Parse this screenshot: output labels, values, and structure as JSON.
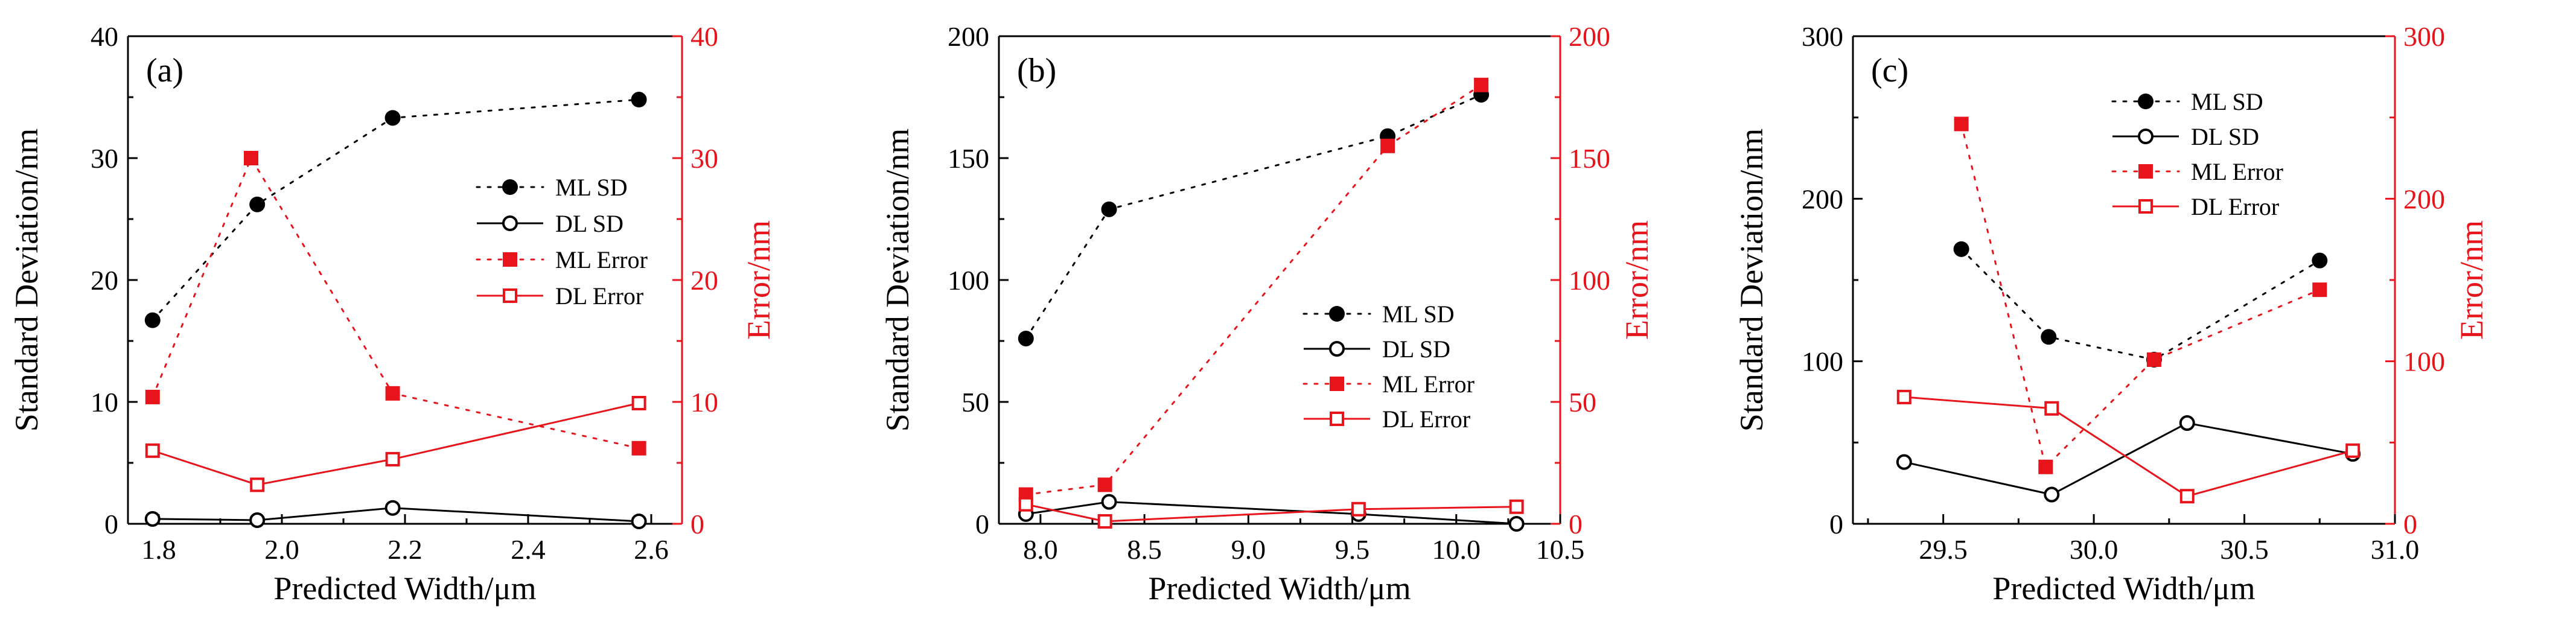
{
  "chart_data": [
    {
      "type": "line",
      "panel_label": "(a)",
      "xlabel": "Predicted Width/μm",
      "ylabel_left": "Standard Deviation/nm",
      "ylabel_right": "Error/nm",
      "xlim": [
        1.75,
        2.65
      ],
      "ylim_left": [
        0,
        40
      ],
      "ylim_right": [
        0,
        40
      ],
      "xticks": [
        1.8,
        2.0,
        2.2,
        2.4,
        2.6
      ],
      "xtick_labels": [
        "1.8",
        "2.0",
        "2.2",
        "2.4",
        "2.6"
      ],
      "yticks_left": [
        0,
        10,
        20,
        30,
        40
      ],
      "ytick_labels_left": [
        "0",
        "10",
        "20",
        "30",
        "40"
      ],
      "yticks_right": [
        0,
        10,
        20,
        30,
        40
      ],
      "ytick_labels_right": [
        "0",
        "10",
        "20",
        "30",
        "40"
      ],
      "legend_position": "center-right",
      "series": [
        {
          "name": "ML SD",
          "axis": "left",
          "style": "ml-sd",
          "x": [
            1.79,
            1.96,
            2.18,
            2.58
          ],
          "values": [
            16.7,
            26.2,
            33.3,
            34.8
          ]
        },
        {
          "name": "DL SD",
          "axis": "left",
          "style": "dl-sd",
          "x": [
            1.79,
            1.96,
            2.18,
            2.58
          ],
          "values": [
            0.4,
            0.3,
            1.3,
            0.2
          ]
        },
        {
          "name": "ML Error",
          "axis": "right",
          "style": "ml-err",
          "x": [
            1.79,
            1.95,
            2.18,
            2.58
          ],
          "values": [
            10.4,
            30.0,
            10.7,
            6.2
          ]
        },
        {
          "name": "DL Error",
          "axis": "right",
          "style": "dl-err",
          "x": [
            1.79,
            1.96,
            2.18,
            2.58
          ],
          "values": [
            6.0,
            3.2,
            5.3,
            9.9
          ]
        }
      ]
    },
    {
      "type": "line",
      "panel_label": "(b)",
      "xlabel": "Predicted Width/μm",
      "ylabel_left": "Standard Deviation/nm",
      "ylabel_right": "Error/nm",
      "xlim": [
        7.8,
        10.5
      ],
      "ylim_left": [
        0,
        200
      ],
      "ylim_right": [
        0,
        200
      ],
      "xticks": [
        8.0,
        8.5,
        9.0,
        9.5,
        10.0,
        10.5
      ],
      "xtick_labels": [
        "8.0",
        "8.5",
        "9.0",
        "9.5",
        "10.0",
        "10.5"
      ],
      "yticks_left": [
        0,
        50,
        100,
        150,
        200
      ],
      "ytick_labels_left": [
        "0",
        "50",
        "100",
        "150",
        "200"
      ],
      "yticks_right": [
        0,
        50,
        100,
        150,
        200
      ],
      "ytick_labels_right": [
        "0",
        "50",
        "100",
        "150",
        "200"
      ],
      "legend_position": "bottom-right",
      "series": [
        {
          "name": "ML SD",
          "axis": "left",
          "style": "ml-sd",
          "x": [
            7.93,
            8.33,
            9.67,
            10.12
          ],
          "values": [
            76,
            129,
            159,
            176
          ]
        },
        {
          "name": "DL SD",
          "axis": "left",
          "style": "dl-sd",
          "x": [
            7.93,
            8.33,
            9.53,
            10.29
          ],
          "values": [
            4,
            9,
            4,
            0
          ]
        },
        {
          "name": "ML Error",
          "axis": "right",
          "style": "ml-err",
          "x": [
            7.93,
            8.31,
            9.67,
            10.12
          ],
          "values": [
            12,
            16,
            155,
            180
          ]
        },
        {
          "name": "DL Error",
          "axis": "right",
          "style": "dl-err",
          "x": [
            7.93,
            8.31,
            9.53,
            10.29
          ],
          "values": [
            8,
            1,
            6,
            7
          ]
        }
      ]
    },
    {
      "type": "line",
      "panel_label": "(c)",
      "xlabel": "Predicted Width/μm",
      "ylabel_left": "Standard Deviation/nm",
      "ylabel_right": "Error/nm",
      "xlim": [
        29.2,
        31.0
      ],
      "ylim_left": [
        0,
        300
      ],
      "ylim_right": [
        0,
        300
      ],
      "xticks": [
        29.5,
        30.0,
        30.5,
        31.0
      ],
      "xtick_labels": [
        "29.5",
        "30.0",
        "30.5",
        "31.0"
      ],
      "yticks_left": [
        0,
        100,
        200,
        300
      ],
      "ytick_labels_left": [
        "0",
        "100",
        "200",
        "300"
      ],
      "yticks_right": [
        0,
        100,
        200,
        300
      ],
      "ytick_labels_right": [
        "0",
        "100",
        "200",
        "300"
      ],
      "legend_position": "top-center",
      "series": [
        {
          "name": "ML SD",
          "axis": "left",
          "style": "ml-sd",
          "x": [
            29.56,
            29.85,
            30.2,
            30.75
          ],
          "values": [
            169,
            115,
            101,
            162
          ]
        },
        {
          "name": "DL SD",
          "axis": "left",
          "style": "dl-sd",
          "x": [
            29.37,
            29.86,
            30.31,
            30.86
          ],
          "values": [
            38,
            18,
            62,
            43
          ]
        },
        {
          "name": "ML Error",
          "axis": "right",
          "style": "ml-err",
          "x": [
            29.56,
            29.84,
            30.2,
            30.75
          ],
          "values": [
            246,
            35,
            101,
            144
          ]
        },
        {
          "name": "DL Error",
          "axis": "right",
          "style": "dl-err",
          "x": [
            29.37,
            29.86,
            30.31,
            30.86
          ],
          "values": [
            78,
            71,
            17,
            45
          ]
        }
      ]
    }
  ],
  "colors": {
    "axis": "#000000",
    "error_axis": "#e8141b",
    "ml_sd": "#000000",
    "dl_sd": "#000000",
    "ml_error": "#e8141b",
    "dl_error": "#e8141b"
  }
}
